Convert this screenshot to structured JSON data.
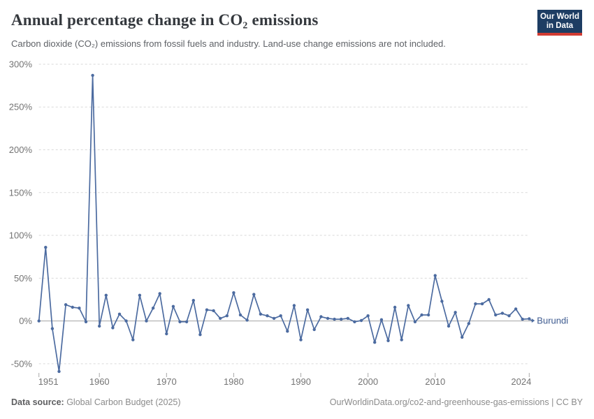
{
  "header": {
    "title": "Annual percentage change in CO₂ emissions",
    "subtitle": "Carbon dioxide (CO₂) emissions from fossil fuels and industry. Land-use change emissions are not included.",
    "logo": {
      "line1": "Our World",
      "line2": "in Data"
    }
  },
  "chart_data": {
    "type": "line",
    "title": "Annual percentage change in CO₂ emissions",
    "xlabel": "",
    "ylabel": "",
    "xlim": [
      1951,
      2024
    ],
    "ylim": [
      -62,
      300
    ],
    "grid": "horizontal-dashed",
    "legend_position": "end-of-line-label",
    "xticks": [
      1951,
      1960,
      1970,
      1980,
      1990,
      2000,
      2010,
      2024
    ],
    "yticks": [
      "300%",
      "250%",
      "200%",
      "150%",
      "100%",
      "50%",
      "0%",
      "-50%"
    ],
    "ytick_values": [
      300,
      250,
      200,
      150,
      100,
      50,
      0,
      -50
    ],
    "series": [
      {
        "name": "Burundi",
        "color": "#4c6ba0",
        "label_color": "#3d5a8f",
        "x": [
          1951,
          1952,
          1953,
          1954,
          1955,
          1956,
          1957,
          1958,
          1959,
          1960,
          1961,
          1962,
          1963,
          1964,
          1965,
          1966,
          1967,
          1968,
          1969,
          1970,
          1971,
          1972,
          1973,
          1974,
          1975,
          1976,
          1977,
          1978,
          1979,
          1980,
          1981,
          1982,
          1983,
          1984,
          1985,
          1986,
          1987,
          1988,
          1989,
          1990,
          1991,
          1992,
          1993,
          1994,
          1995,
          1996,
          1997,
          1998,
          1999,
          2000,
          2001,
          2002,
          2003,
          2004,
          2005,
          2006,
          2007,
          2008,
          2009,
          2010,
          2011,
          2012,
          2013,
          2014,
          2015,
          2016,
          2017,
          2018,
          2019,
          2020,
          2021,
          2022,
          2023,
          2024
        ],
        "values": [
          0,
          86,
          -9,
          -59,
          19,
          16,
          15,
          -1,
          287,
          -6,
          30,
          -8,
          8,
          0,
          -22,
          30,
          0,
          15,
          32,
          -15,
          17,
          -1,
          -1,
          24,
          -16,
          13,
          12,
          3,
          6,
          33,
          7,
          1,
          31,
          8,
          6,
          3,
          6,
          -12,
          18,
          -22,
          13,
          -10,
          5,
          3,
          2,
          2,
          3,
          -1,
          0.5,
          6,
          -25,
          1.5,
          -23,
          16,
          -22,
          18,
          -1,
          7,
          7,
          53,
          23,
          -6,
          10,
          -19,
          -3,
          20,
          20,
          25,
          7,
          9,
          6,
          14,
          2,
          2.5
        ]
      }
    ],
    "colors": {
      "gridline": "#d9d9d9",
      "zero_line": "#a3a3a3",
      "tick_text": "#747474",
      "tick_mark": "#a8a8a8"
    }
  },
  "footer": {
    "datasource_label": "Data source:",
    "datasource_value": " Global Carbon Budget (2025)",
    "link": "OurWorldinData.org/co2-and-greenhouse-gas-emissions | CC BY"
  }
}
